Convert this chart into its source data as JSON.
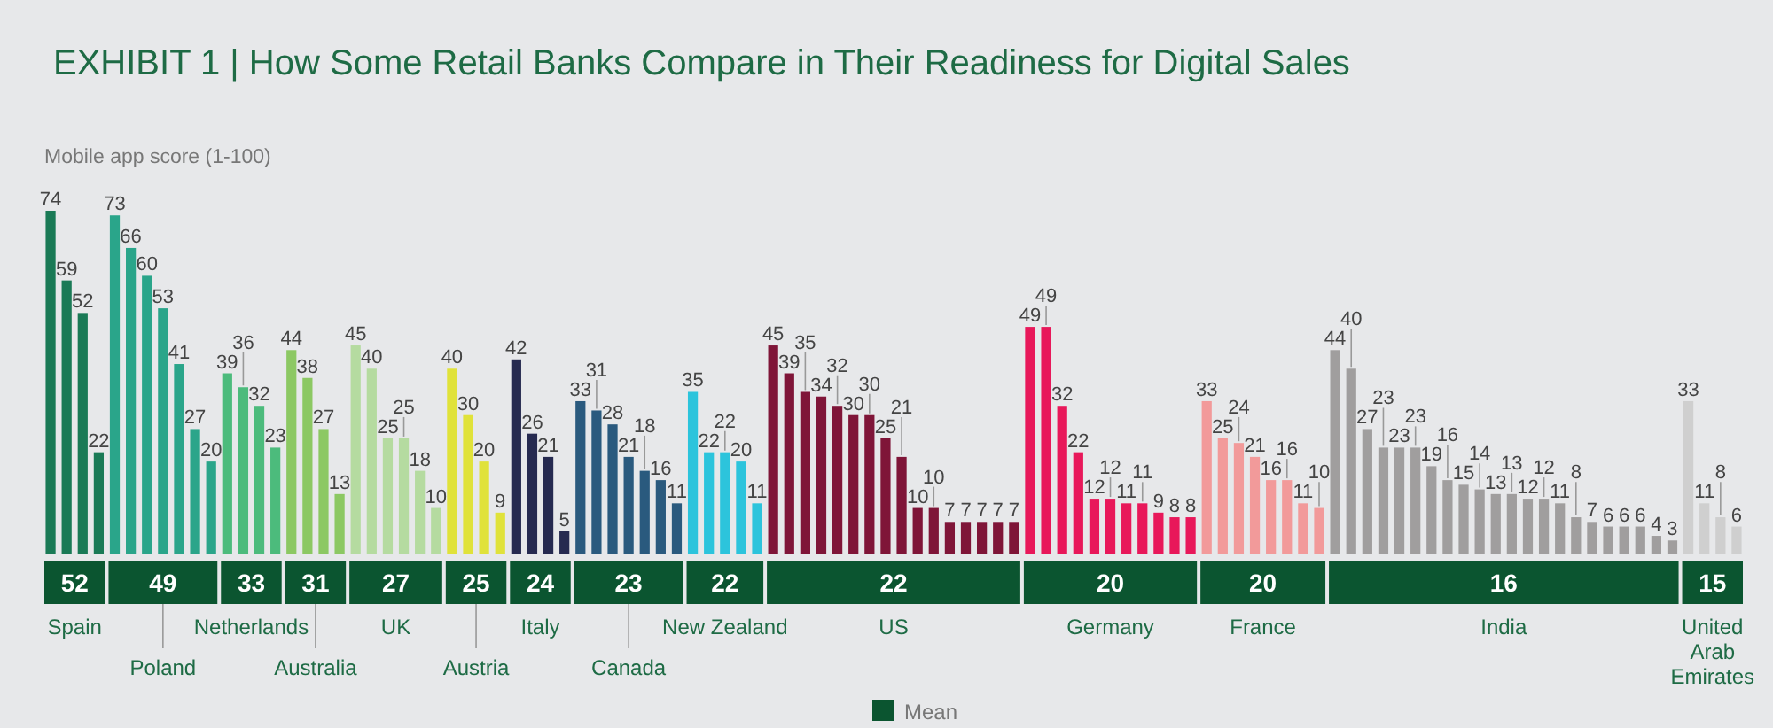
{
  "chart_data": {
    "type": "bar",
    "title": "EXHIBIT 1 | How Some Retail Banks Compare in Their Readiness for Digital Sales",
    "ylabel": "Mobile app score (1-100)",
    "data_labels": true,
    "categories": [
      null,
      null,
      null,
      null,
      null,
      null,
      null,
      null,
      null,
      null,
      null,
      null,
      null,
      null,
      null,
      null,
      null,
      null,
      null,
      null,
      null,
      null,
      null,
      null,
      null,
      null,
      null,
      null,
      null,
      null,
      null,
      null,
      null,
      null,
      null,
      null,
      null,
      null,
      null,
      null,
      null,
      null,
      null,
      null,
      null,
      null,
      null,
      null,
      null,
      null,
      null,
      null,
      null,
      null,
      null,
      null,
      null,
      null,
      null,
      null,
      null,
      null,
      null,
      null,
      null,
      null,
      null,
      null,
      null,
      null,
      null,
      null,
      null,
      null,
      null,
      null,
      null,
      null,
      null,
      null,
      null,
      null,
      null,
      null,
      null,
      null,
      null,
      null,
      null,
      null,
      null,
      null,
      null,
      null,
      null,
      null,
      null,
      null,
      null,
      null,
      null,
      null,
      null,
      null,
      null,
      null
    ],
    "values": [
      74,
      59,
      52,
      22,
      73,
      66,
      60,
      53,
      41,
      27,
      20,
      39,
      36,
      32,
      23,
      44,
      38,
      27,
      13,
      45,
      40,
      25,
      25,
      18,
      10,
      40,
      30,
      20,
      9,
      42,
      26,
      21,
      5,
      33,
      31,
      28,
      21,
      18,
      16,
      11,
      35,
      22,
      22,
      20,
      11,
      45,
      39,
      35,
      34,
      32,
      30,
      30,
      25,
      21,
      10,
      10,
      7,
      7,
      7,
      7,
      7,
      49,
      49,
      32,
      22,
      12,
      12,
      11,
      11,
      9,
      8,
      8,
      33,
      25,
      24,
      21,
      16,
      16,
      11,
      10,
      44,
      40,
      27,
      23,
      23,
      23,
      19,
      16,
      15,
      14,
      13,
      13,
      12,
      12,
      11,
      8,
      7,
      6,
      6,
      6,
      4,
      3,
      33,
      11,
      8,
      6
    ],
    "colors": [
      "#1a7a56",
      "#1a7a56",
      "#1a7a56",
      "#1a7a56",
      "#2aa58a",
      "#2aa58a",
      "#2aa58a",
      "#2aa58a",
      "#2aa58a",
      "#2aa58a",
      "#2aa58a",
      "#4cbb7c",
      "#4cbb7c",
      "#4cbb7c",
      "#4cbb7c",
      "#8cc863",
      "#8cc863",
      "#8cc863",
      "#8cc863",
      "#b5dba0",
      "#b5dba0",
      "#b5dba0",
      "#b5dba0",
      "#b5dba0",
      "#b5dba0",
      "#e0e23a",
      "#e0e23a",
      "#e0e23a",
      "#e0e23a",
      "#262a50",
      "#262a50",
      "#262a50",
      "#262a50",
      "#2a5a7e",
      "#2a5a7e",
      "#2a5a7e",
      "#2a5a7e",
      "#2a5a7e",
      "#2a5a7e",
      "#2a5a7e",
      "#2cc4dc",
      "#2cc4dc",
      "#2cc4dc",
      "#2cc4dc",
      "#2cc4dc",
      "#7f1538",
      "#7f1538",
      "#7f1538",
      "#7f1538",
      "#7f1538",
      "#7f1538",
      "#7f1538",
      "#7f1538",
      "#7f1538",
      "#7f1538",
      "#7f1538",
      "#7f1538",
      "#7f1538",
      "#7f1538",
      "#7f1538",
      "#7f1538",
      "#e8185a",
      "#e8185a",
      "#e8185a",
      "#e8185a",
      "#e8185a",
      "#e8185a",
      "#e8185a",
      "#e8185a",
      "#e8185a",
      "#e8185a",
      "#e8185a",
      "#f29a9a",
      "#f29a9a",
      "#f29a9a",
      "#f29a9a",
      "#f29a9a",
      "#f29a9a",
      "#f29a9a",
      "#f29a9a",
      "#a09e9e",
      "#a09e9e",
      "#a09e9e",
      "#a09e9e",
      "#a09e9e",
      "#a09e9e",
      "#a09e9e",
      "#a09e9e",
      "#a09e9e",
      "#a09e9e",
      "#a09e9e",
      "#a09e9e",
      "#a09e9e",
      "#a09e9e",
      "#a09e9e",
      "#a09e9e",
      "#a09e9e",
      "#a09e9e",
      "#a09e9e",
      "#a09e9e",
      "#a09e9e",
      "#a09e9e",
      "#cfcfcf",
      "#cfcfcf",
      "#cfcfcf",
      "#cfcfcf"
    ],
    "annotations": [
      "52",
      "Spain",
      "49",
      "Poland",
      "33",
      "Netherlands",
      "31",
      "Australia",
      "27",
      "UK",
      "25",
      "Austria",
      "24",
      "Italy",
      "23",
      "Canada",
      "22",
      "New Zealand",
      "22",
      "US",
      "20",
      "Germany",
      "20",
      "France",
      "16",
      "India",
      "15",
      "United Arab Emirates",
      "Mean"
    ]
  }
}
